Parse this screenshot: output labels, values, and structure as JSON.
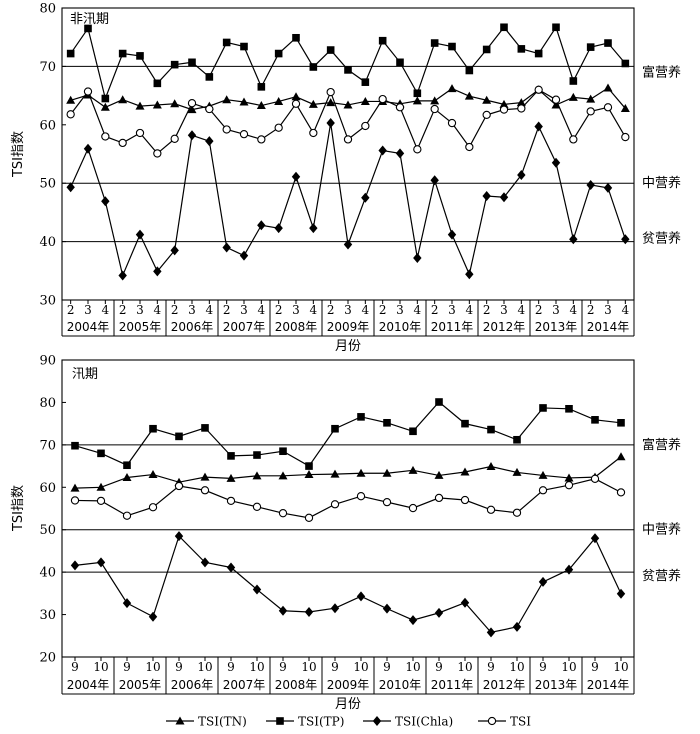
{
  "legend": [
    "TSI(TN)",
    "TSI(TP)",
    "TSI(Chla)",
    "TSI"
  ],
  "chart_data": [
    {
      "type": "line",
      "title": "非汛期",
      "ylabel": "TSI指数",
      "xlabel": "月份",
      "ylim": [
        30,
        80
      ],
      "yticks": [
        30,
        40,
        50,
        60,
        70,
        80
      ],
      "years": [
        "2004年",
        "2005年",
        "2006年",
        "2007年",
        "2008年",
        "2009年",
        "2010年",
        "2011年",
        "2012年",
        "2013年",
        "2014年"
      ],
      "months": [
        "2",
        "3",
        "4"
      ],
      "reference_lines": [
        {
          "value": 70,
          "label": "富营养"
        },
        {
          "value": 50,
          "label": "中营养"
        },
        {
          "value": 40,
          "label": "贫营养"
        }
      ],
      "series": [
        {
          "name": "TSI(TN)",
          "values": [
            64.2,
            65.1,
            63.0,
            64.3,
            63.2,
            63.4,
            63.6,
            62.6,
            63.2,
            64.3,
            63.9,
            63.3,
            64.0,
            64.8,
            63.5,
            63.8,
            63.4,
            64.0,
            64.0,
            63.6,
            64.1,
            64.1,
            66.2,
            64.9,
            64.2,
            63.5,
            63.8,
            66.0,
            63.4,
            64.7,
            64.4,
            66.3,
            62.8
          ]
        },
        {
          "name": "TSI(TP)",
          "values": [
            72.2,
            76.5,
            64.5,
            72.2,
            71.8,
            67.1,
            70.3,
            70.7,
            68.2,
            74.1,
            73.4,
            66.5,
            72.2,
            74.9,
            69.9,
            72.8,
            69.4,
            67.3,
            74.4,
            70.7,
            65.4,
            74.0,
            73.4,
            69.3,
            72.9,
            76.7,
            73.0,
            72.2,
            76.7,
            67.5,
            73.3,
            74.0,
            70.5
          ]
        },
        {
          "name": "TSI(Chla)",
          "values": [
            49.3,
            55.9,
            46.9,
            34.2,
            41.2,
            34.9,
            38.5,
            58.2,
            57.2,
            39.0,
            37.6,
            42.8,
            42.3,
            51.1,
            42.3,
            60.3,
            39.5,
            47.5,
            55.6,
            55.1,
            37.2,
            50.5,
            41.2,
            34.4,
            47.8,
            47.6,
            51.4,
            59.7,
            53.5,
            40.4,
            49.7,
            49.2,
            40.4
          ]
        },
        {
          "name": "TSI",
          "values": [
            61.8,
            65.7,
            58.0,
            56.9,
            58.6,
            55.1,
            57.6,
            63.7,
            62.7,
            59.2,
            58.4,
            57.5,
            59.5,
            63.6,
            58.6,
            65.6,
            57.5,
            59.8,
            64.4,
            63.0,
            55.8,
            62.7,
            60.3,
            56.2,
            61.7,
            62.6,
            62.8,
            66.0,
            64.3,
            57.5,
            62.3,
            63.0,
            57.9
          ]
        }
      ]
    },
    {
      "type": "line",
      "title": "汛期",
      "ylabel": "TSI指数",
      "xlabel": "月份",
      "ylim": [
        20,
        90
      ],
      "yticks": [
        20,
        30,
        40,
        50,
        60,
        70,
        80,
        90
      ],
      "years": [
        "2004年",
        "2005年",
        "2006年",
        "2007年",
        "2008年",
        "2009年",
        "2010年",
        "2011年",
        "2012年",
        "2013年",
        "2014年"
      ],
      "months": [
        "9",
        "10"
      ],
      "reference_lines": [
        {
          "value": 70,
          "label": "富营养"
        },
        {
          "value": 50,
          "label": "中营养"
        },
        {
          "value": 40,
          "label": "贫营养"
        }
      ],
      "series": [
        {
          "name": "TSI(TN)",
          "values": [
            59.8,
            60.0,
            62.3,
            63.0,
            61.2,
            62.4,
            62.1,
            62.7,
            62.7,
            63.0,
            63.1,
            63.3,
            63.3,
            64.0,
            62.8,
            63.6,
            64.9,
            63.5,
            62.8,
            62.2,
            62.4,
            67.2
          ]
        },
        {
          "name": "TSI(TP)",
          "values": [
            69.8,
            68.0,
            65.2,
            73.8,
            72.0,
            74.0,
            67.4,
            67.6,
            68.5,
            65.0,
            73.8,
            76.6,
            75.2,
            73.2,
            80.1,
            75.0,
            73.6,
            71.2,
            78.7,
            78.5,
            75.9,
            75.2
          ]
        },
        {
          "name": "TSI(Chla)",
          "values": [
            41.6,
            42.3,
            32.7,
            29.5,
            48.5,
            42.3,
            41.1,
            35.9,
            30.9,
            30.6,
            31.5,
            34.3,
            31.4,
            28.7,
            30.4,
            32.8,
            25.8,
            27.1,
            37.7,
            40.6,
            48.0,
            34.9
          ]
        },
        {
          "name": "TSI",
          "values": [
            56.9,
            56.8,
            53.3,
            55.3,
            60.3,
            59.3,
            56.8,
            55.4,
            53.9,
            52.8,
            56.0,
            57.9,
            56.5,
            55.1,
            57.5,
            57.0,
            54.7,
            54.0,
            59.3,
            60.5,
            62.0,
            58.8
          ]
        }
      ]
    }
  ]
}
